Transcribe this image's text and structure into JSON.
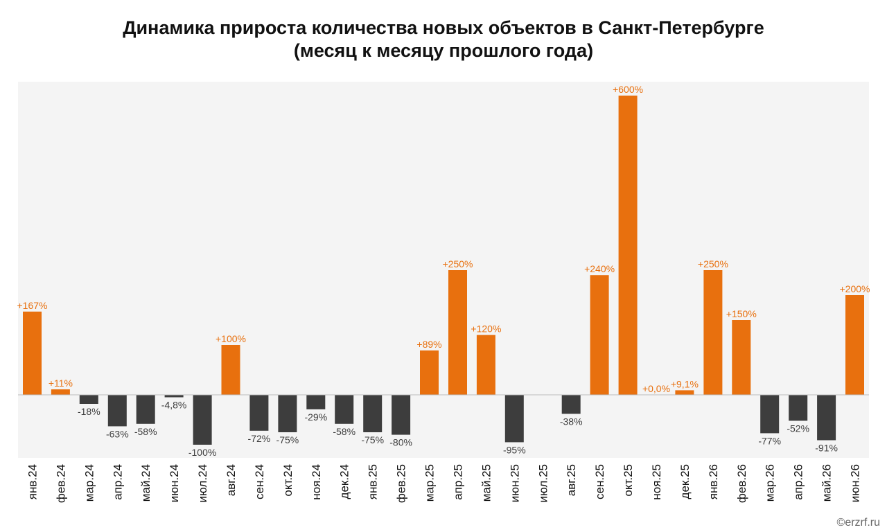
{
  "title_line1": "Динамика прироста количества новых объектов в Санкт-Петербурге",
  "title_line2": "(месяц к месяцу прошлого года)",
  "credit": "©erzrf.ru",
  "colors": {
    "positive": "#e8700e",
    "negative": "#3d3d3d",
    "plot_bg": "#f4f4f4",
    "zero_line": "#bdbdbd"
  },
  "chart_data": {
    "type": "bar",
    "title": "Динамика прироста количества новых объектов в Санкт-Петербурге (месяц к месяцу прошлого года)",
    "grid": false,
    "legend": "none",
    "ylim": [
      -128,
      620
    ],
    "categories": [
      "янв.24",
      "фев.24",
      "мар.24",
      "апр.24",
      "май.24",
      "июн.24",
      "июл.24",
      "авг.24",
      "сен.24",
      "окт.24",
      "ноя.24",
      "дек.24",
      "янв.25",
      "фев.25",
      "мар.25",
      "апр.25",
      "май.25",
      "июн.25",
      "июл.25",
      "авг.25",
      "сен.25",
      "окт.25",
      "ноя.25",
      "дек.25",
      "янв.26",
      "фев.26",
      "мар.26",
      "апр.26",
      "май.26",
      "июн.26"
    ],
    "values": [
      167,
      11,
      -18,
      -63,
      -58,
      -4.8,
      -100,
      100,
      -72,
      -75,
      -29,
      -58,
      -75,
      -80,
      89,
      250,
      120,
      -95,
      null,
      -38,
      240,
      600,
      0,
      9.1,
      250,
      150,
      -77,
      -52,
      -91,
      200
    ],
    "labels": [
      "+167%",
      "+11%",
      "-18%",
      "-63%",
      "-58%",
      "-4,8%",
      "-100%",
      "+100%",
      "-72%",
      "-75%",
      "-29%",
      "-58%",
      "-75%",
      "-80%",
      "+89%",
      "+250%",
      "+120%",
      "-95%",
      "",
      "-38%",
      "+240%",
      "+600%",
      "+0,0%",
      "+9,1%",
      "+250%",
      "+150%",
      "-77%",
      "-52%",
      "-91%",
      "+200%"
    ]
  }
}
